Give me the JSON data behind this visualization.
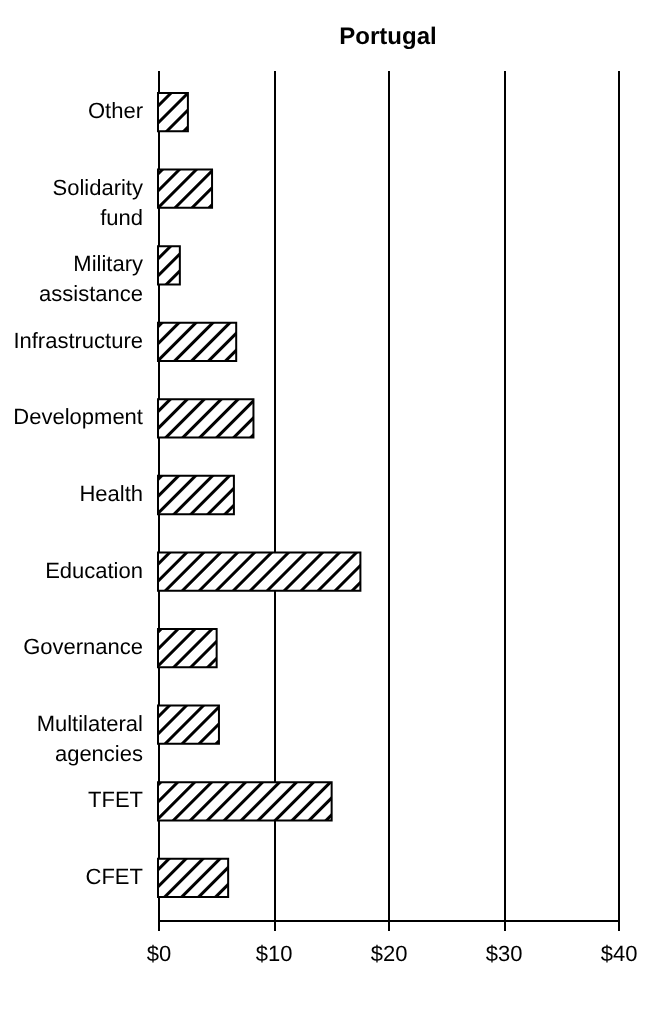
{
  "chart_data": {
    "type": "bar",
    "title": "Portugal",
    "orientation": "horizontal",
    "categories": [
      "Other",
      "Solidarity fund",
      "Military assistance",
      "Infrastructure",
      "Development",
      "Health",
      "Education",
      "Governance",
      "Multilateral agencies",
      "TFET",
      "CFET"
    ],
    "values": [
      2.6,
      4.7,
      1.9,
      6.8,
      8.3,
      6.6,
      17.6,
      5.1,
      5.3,
      15.1,
      6.1
    ],
    "color": "#000000",
    "xlim": [
      0,
      40
    ],
    "xticks": [
      {
        "value": 0,
        "label": "$0"
      },
      {
        "value": 10,
        "label": "$10"
      },
      {
        "value": 20,
        "label": "$20"
      },
      {
        "value": 30,
        "label": "$30"
      },
      {
        "value": 40,
        "label": "$40"
      }
    ],
    "grid": "x"
  }
}
